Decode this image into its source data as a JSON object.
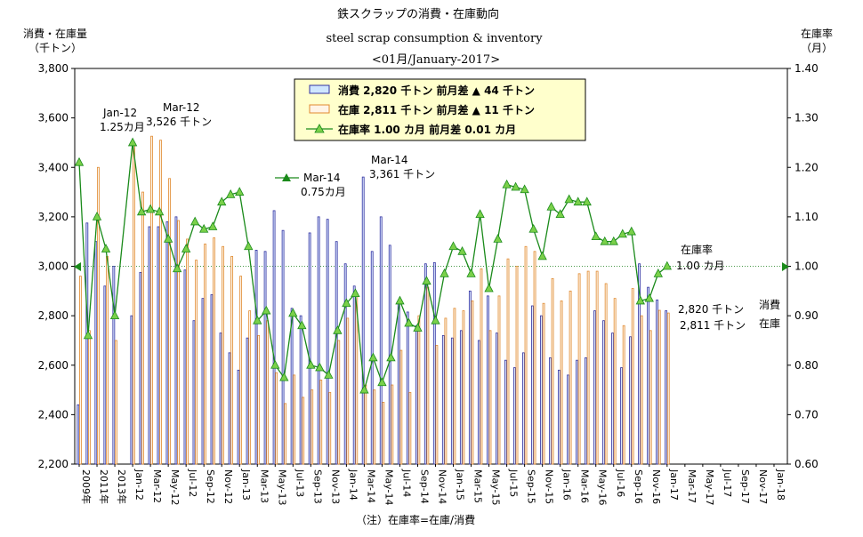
{
  "title_lines": [
    "鉄スクラップの消費・在庫動向",
    "steel scrap consumption & inventory",
    "<01月/January-2017>"
  ],
  "left_axis_title": [
    "消費・在庫量",
    "（千トン）"
  ],
  "right_axis_title": [
    "在庫率",
    "（月）"
  ],
  "footnote": "（注）在庫率=在庫/消費",
  "legend": [
    {
      "label": "消費 2,820 千トン 前月差 ▲ 44 千トン"
    },
    {
      "label": "在庫 2,811 千トン 前月差 ▲ 11 千トン"
    },
    {
      "label": "在庫率 1.00 カ月 前月差 0.01 カ月"
    }
  ],
  "colors": {
    "consumption": "#3030a0",
    "inventory": "#e08a30",
    "ratio": "#1a8a1a",
    "ratio_marker": "#7ad04a",
    "legend_bg": "#ffffcc",
    "ref_line": "#4a9a4a"
  },
  "annotations": [
    {
      "id": "jan12",
      "lines": [
        "Jan-12",
        "1.25カ月"
      ]
    },
    {
      "id": "mar12",
      "lines": [
        "Mar-12",
        "3,526 千トン"
      ]
    },
    {
      "id": "mar14r",
      "lines": [
        "Mar-14",
        "0.75カ月"
      ]
    },
    {
      "id": "mar14c",
      "lines": [
        "Mar-14",
        "3,361 千トン"
      ]
    },
    {
      "id": "ratio_now",
      "lines": [
        "在庫率",
        "1.00 カ月"
      ]
    },
    {
      "id": "latest",
      "lines": [
        "2,820 千トン",
        "2,811 千トン"
      ]
    },
    {
      "id": "latest_names",
      "lines": [
        "消費",
        "在庫"
      ]
    }
  ],
  "chart_data": {
    "type": "bar",
    "y_left": {
      "min": 2200,
      "max": 3800,
      "ticks": [
        "2,200",
        "2,400",
        "2,600",
        "2,800",
        "3,000",
        "3,200",
        "3,400",
        "3,600",
        "3,800"
      ]
    },
    "y_right": {
      "min": 0.6,
      "max": 1.4,
      "ticks": [
        "0.60",
        "0.70",
        "0.80",
        "0.90",
        "1.00",
        "1.10",
        "1.20",
        "1.30",
        "1.40"
      ]
    },
    "x_tick_labels": [
      {
        "slot": 0,
        "label": "2009年"
      },
      {
        "slot": 4,
        "label": "2011年"
      },
      {
        "slot": 8,
        "label": "2013年"
      },
      {
        "slot": 12,
        "label": "Jan-12"
      },
      {
        "slot": 16,
        "label": "Mar-12"
      },
      {
        "slot": 20,
        "label": "May-12"
      },
      {
        "slot": 24,
        "label": "Jul-12"
      },
      {
        "slot": 28,
        "label": "Sep-12"
      },
      {
        "slot": 32,
        "label": "Nov-12"
      },
      {
        "slot": 36,
        "label": "Jan-13"
      },
      {
        "slot": 40,
        "label": "Mar-13"
      },
      {
        "slot": 44,
        "label": "May-13"
      },
      {
        "slot": 48,
        "label": "Jul-13"
      },
      {
        "slot": 52,
        "label": "Sep-13"
      },
      {
        "slot": 56,
        "label": "Nov-13"
      },
      {
        "slot": 60,
        "label": "Jan-14"
      },
      {
        "slot": 64,
        "label": "Mar-14"
      },
      {
        "slot": 68,
        "label": "May-14"
      },
      {
        "slot": 72,
        "label": "Jul-14"
      },
      {
        "slot": 76,
        "label": "Sep-14"
      },
      {
        "slot": 80,
        "label": "Nov-14"
      },
      {
        "slot": 84,
        "label": "Jan-15"
      },
      {
        "slot": 88,
        "label": "Mar-15"
      },
      {
        "slot": 92,
        "label": "May-15"
      },
      {
        "slot": 96,
        "label": "Jul-15"
      },
      {
        "slot": 100,
        "label": "Sep-15"
      },
      {
        "slot": 104,
        "label": "Nov-15"
      },
      {
        "slot": 108,
        "label": "Jan-16"
      },
      {
        "slot": 112,
        "label": "Mar-16"
      },
      {
        "slot": 116,
        "label": "May-16"
      },
      {
        "slot": 120,
        "label": "Jul-16"
      },
      {
        "slot": 124,
        "label": "Sep-16"
      },
      {
        "slot": 128,
        "label": "Nov-16"
      },
      {
        "slot": 132,
        "label": "Jan-17"
      },
      {
        "slot": 136,
        "label": "Mar-17"
      },
      {
        "slot": 140,
        "label": "May-17"
      },
      {
        "slot": 144,
        "label": "Jul-17"
      },
      {
        "slot": 148,
        "label": "Sep-17"
      },
      {
        "slot": 152,
        "label": "Nov-17"
      },
      {
        "slot": 156,
        "label": "Jan-18"
      }
    ],
    "points": [
      {
        "slot": 0,
        "c": 2440,
        "i": 2960,
        "r": 1.21
      },
      {
        "slot": 2,
        "c": 3175,
        "i": 2740,
        "r": 0.86
      },
      {
        "slot": 4,
        "c": 3100,
        "i": 3400,
        "r": 1.1
      },
      {
        "slot": 6,
        "c": 2920,
        "i": 3040,
        "r": 1.035
      },
      {
        "slot": 8,
        "c": 3000,
        "i": 2700,
        "r": 0.9
      },
      {
        "slot": 12,
        "c": 2800,
        "i": 3500,
        "r": 1.25
      },
      {
        "slot": 14,
        "c": 2975,
        "i": 3300,
        "r": 1.11
      },
      {
        "slot": 16,
        "c": 3160,
        "i": 3526,
        "r": 1.115
      },
      {
        "slot": 18,
        "c": 3160,
        "i": 3510,
        "r": 1.11
      },
      {
        "slot": 20,
        "c": 3180,
        "i": 3355,
        "r": 1.055
      },
      {
        "slot": 22,
        "c": 3200,
        "i": 3185,
        "r": 0.995
      },
      {
        "slot": 24,
        "c": 2985,
        "i": 3110,
        "r": 1.035
      },
      {
        "slot": 26,
        "c": 2780,
        "i": 3025,
        "r": 1.09
      },
      {
        "slot": 28,
        "c": 2870,
        "i": 3090,
        "r": 1.075
      },
      {
        "slot": 30,
        "c": 2885,
        "i": 3115,
        "r": 1.08
      },
      {
        "slot": 32,
        "c": 2730,
        "i": 3080,
        "r": 1.13
      },
      {
        "slot": 34,
        "c": 2650,
        "i": 3040,
        "r": 1.145
      },
      {
        "slot": 36,
        "c": 2580,
        "i": 2960,
        "r": 1.15
      },
      {
        "slot": 38,
        "c": 2710,
        "i": 2820,
        "r": 1.04
      },
      {
        "slot": 40,
        "c": 3065,
        "i": 2720,
        "r": 0.89
      },
      {
        "slot": 42,
        "c": 3060,
        "i": 2780,
        "r": 0.91
      },
      {
        "slot": 44,
        "c": 3225,
        "i": 2570,
        "r": 0.8
      },
      {
        "slot": 46,
        "c": 3145,
        "i": 2445,
        "r": 0.775
      },
      {
        "slot": 48,
        "c": 2830,
        "i": 2560,
        "r": 0.905
      },
      {
        "slot": 50,
        "c": 2800,
        "i": 2470,
        "r": 0.88
      },
      {
        "slot": 52,
        "c": 3135,
        "i": 2500,
        "r": 0.8
      },
      {
        "slot": 54,
        "c": 3200,
        "i": 2540,
        "r": 0.795
      },
      {
        "slot": 56,
        "c": 3190,
        "i": 2490,
        "r": 0.78
      },
      {
        "slot": 58,
        "c": 3100,
        "i": 2700,
        "r": 0.87
      },
      {
        "slot": 60,
        "c": 3010,
        "i": 2790,
        "r": 0.925
      },
      {
        "slot": 62,
        "c": 2920,
        "i": 2890,
        "r": 0.945
      },
      {
        "slot": 64,
        "c": 3361,
        "i": 2520,
        "r": 0.75
      },
      {
        "slot": 66,
        "c": 3060,
        "i": 2500,
        "r": 0.815
      },
      {
        "slot": 68,
        "c": 3200,
        "i": 2450,
        "r": 0.765
      },
      {
        "slot": 70,
        "c": 3085,
        "i": 2520,
        "r": 0.815
      },
      {
        "slot": 72,
        "c": 2850,
        "i": 2660,
        "r": 0.93
      },
      {
        "slot": 74,
        "c": 2815,
        "i": 2490,
        "r": 0.885
      },
      {
        "slot": 76,
        "c": 2760,
        "i": 2800,
        "r": 0.875
      },
      {
        "slot": 78,
        "c": 3010,
        "i": 2915,
        "r": 0.97
      },
      {
        "slot": 80,
        "c": 3015,
        "i": 2680,
        "r": 0.89
      },
      {
        "slot": 82,
        "c": 2720,
        "i": 2790,
        "r": 0.985
      },
      {
        "slot": 84,
        "c": 2710,
        "i": 2830,
        "r": 1.04
      },
      {
        "slot": 86,
        "c": 2740,
        "i": 2820,
        "r": 1.03
      },
      {
        "slot": 88,
        "c": 2900,
        "i": 2860,
        "r": 0.985
      },
      {
        "slot": 90,
        "c": 2700,
        "i": 2990,
        "r": 1.105
      },
      {
        "slot": 92,
        "c": 2880,
        "i": 2740,
        "r": 0.955
      },
      {
        "slot": 94,
        "c": 2730,
        "i": 2880,
        "r": 1.055
      },
      {
        "slot": 96,
        "c": 2620,
        "i": 3030,
        "r": 1.165
      },
      {
        "slot": 98,
        "c": 2590,
        "i": 3000,
        "r": 1.16
      },
      {
        "slot": 100,
        "c": 2650,
        "i": 3080,
        "r": 1.155
      },
      {
        "slot": 102,
        "c": 2840,
        "i": 3060,
        "r": 1.075
      },
      {
        "slot": 104,
        "c": 2800,
        "i": 2850,
        "r": 1.02
      },
      {
        "slot": 106,
        "c": 2630,
        "i": 2950,
        "r": 1.12
      },
      {
        "slot": 108,
        "c": 2580,
        "i": 2860,
        "r": 1.105
      },
      {
        "slot": 110,
        "c": 2560,
        "i": 2900,
        "r": 1.135
      },
      {
        "slot": 112,
        "c": 2620,
        "i": 2970,
        "r": 1.13
      },
      {
        "slot": 114,
        "c": 2630,
        "i": 2980,
        "r": 1.13
      },
      {
        "slot": 116,
        "c": 2820,
        "i": 2980,
        "r": 1.06
      },
      {
        "slot": 118,
        "c": 2780,
        "i": 2930,
        "r": 1.05
      },
      {
        "slot": 120,
        "c": 2730,
        "i": 2870,
        "r": 1.05
      },
      {
        "slot": 122,
        "c": 2590,
        "i": 2760,
        "r": 1.065
      },
      {
        "slot": 124,
        "c": 2715,
        "i": 2910,
        "r": 1.07
      },
      {
        "slot": 126,
        "c": 3010,
        "i": 2800,
        "r": 0.93
      },
      {
        "slot": 128,
        "c": 2915,
        "i": 2740,
        "r": 0.935
      },
      {
        "slot": 130,
        "c": 2864,
        "i": 2822,
        "r": 0.985
      },
      {
        "slot": 132,
        "c": 2820,
        "i": 2811,
        "r": 1.0
      }
    ]
  }
}
